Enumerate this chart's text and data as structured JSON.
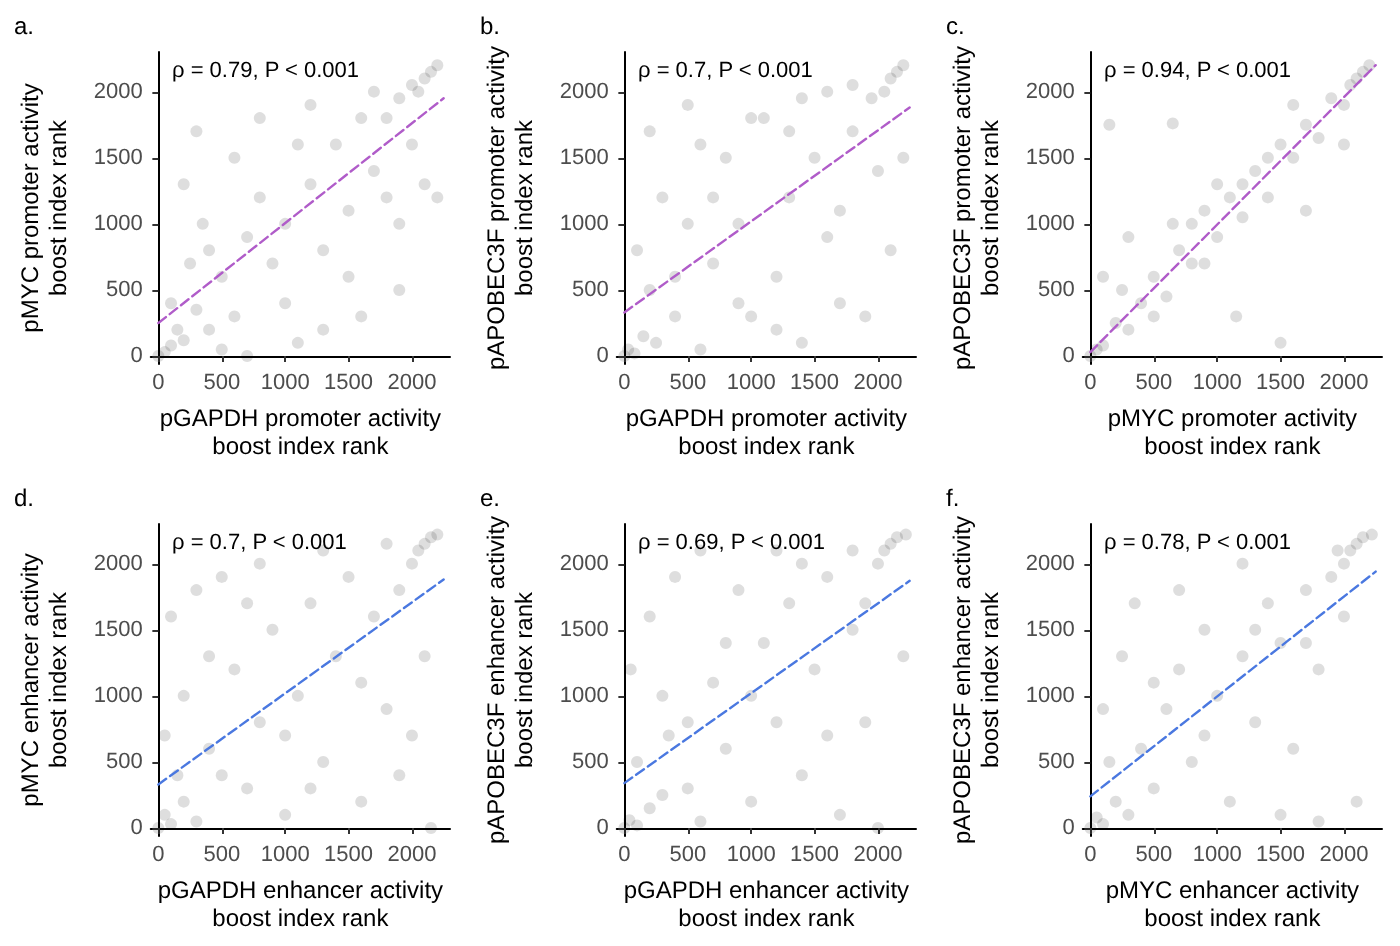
{
  "chart_data": [
    {
      "type": "scatter",
      "title": "a.",
      "xlabel": "pGAPDH promoter activity\nboost index rank",
      "ylabel": "pMYC promoter activity\nboost index rank",
      "annotations": [
        "ρ = 0.79, P < 0.001"
      ],
      "xlim": [
        -60,
        2300
      ],
      "ylim": [
        -60,
        2300
      ],
      "xticks": [
        0,
        500,
        1000,
        1500,
        2000
      ],
      "yticks": [
        0,
        500,
        1000,
        1500,
        2000
      ],
      "grid": false,
      "marker": "circle",
      "series": [
        {
          "color": "#000000",
          "x": [
            0,
            50,
            100,
            150,
            200,
            300,
            100,
            250,
            400,
            500,
            600,
            500,
            700,
            350,
            200,
            300,
            600,
            800,
            900,
            1000,
            1100,
            1000,
            1200,
            1300,
            1400,
            1500,
            1500,
            1600,
            1700,
            1800,
            1900,
            2000,
            2050,
            2100,
            2150,
            2200,
            2000,
            1900,
            1700,
            1200,
            800,
            1100,
            1300,
            1900,
            2100,
            2200,
            700,
            400,
            1600,
            1800
          ],
          "values": [
            0,
            30,
            80,
            200,
            120,
            350,
            400,
            700,
            200,
            50,
            300,
            600,
            900,
            1000,
            1300,
            1700,
            1500,
            1200,
            700,
            400,
            100,
            1000,
            1300,
            800,
            1600,
            1100,
            600,
            300,
            1400,
            1800,
            1000,
            1600,
            2000,
            2100,
            2150,
            2200,
            2050,
            1950,
            2000,
            1900,
            1800,
            1600,
            200,
            500,
            1300,
            1200,
            0,
            800,
            1800,
            1200
          ]
        },
        {
          "type": "line",
          "color": "#b05cc9",
          "line_style": "dashed",
          "marker": "none",
          "x": [
            0,
            2250
          ],
          "values": [
            250,
            1950
          ]
        }
      ]
    },
    {
      "type": "scatter",
      "title": "b.",
      "xlabel": "pGAPDH promoter activity\nboost index rank",
      "ylabel": "pAPOBEC3F promoter activity\nboost index rank",
      "annotations": [
        "ρ = 0.7, P < 0.001"
      ],
      "xlim": [
        -60,
        2300
      ],
      "ylim": [
        -60,
        2300
      ],
      "xticks": [
        0,
        500,
        1000,
        1500,
        2000
      ],
      "yticks": [
        0,
        500,
        1000,
        1500,
        2000
      ],
      "grid": false,
      "marker": "circle",
      "series": [
        {
          "color": "#000000",
          "x": [
            0,
            30,
            80,
            150,
            250,
            200,
            100,
            300,
            200,
            500,
            400,
            600,
            700,
            800,
            900,
            1000,
            1100,
            1200,
            1300,
            1400,
            1500,
            1600,
            1700,
            1800,
            1900,
            2000,
            2050,
            2100,
            2150,
            2200,
            1950,
            1800,
            1400,
            1000,
            600,
            1200,
            1600,
            700,
            400,
            2100,
            2200,
            900,
            1300,
            500,
            1700
          ],
          "values": [
            0,
            50,
            20,
            150,
            100,
            500,
            800,
            1200,
            1700,
            1900,
            300,
            50,
            700,
            1500,
            1000,
            300,
            1800,
            600,
            1200,
            100,
            1500,
            900,
            400,
            1700,
            300,
            1400,
            2000,
            2100,
            2150,
            2200,
            1950,
            2050,
            1950,
            1800,
            1600,
            200,
            2000,
            1200,
            600,
            800,
            1500,
            400,
            1700,
            1000,
            1100
          ]
        },
        {
          "type": "line",
          "color": "#b05cc9",
          "line_style": "dashed",
          "marker": "none",
          "x": [
            0,
            2250
          ],
          "values": [
            330,
            1880
          ]
        }
      ]
    },
    {
      "type": "scatter",
      "title": "c.",
      "xlabel": "pMYC promoter activity\nboost index rank",
      "ylabel": "pAPOBEC3F promoter activity\nboost index rank",
      "annotations": [
        "ρ = 0.94, P < 0.001"
      ],
      "xlim": [
        -60,
        2300
      ],
      "ylim": [
        -60,
        2300
      ],
      "xticks": [
        0,
        500,
        1000,
        1500,
        2000
      ],
      "yticks": [
        0,
        500,
        1000,
        1500,
        2000
      ],
      "grid": false,
      "marker": "circle",
      "series": [
        {
          "color": "#000000",
          "x": [
            0,
            50,
            100,
            200,
            300,
            250,
            400,
            500,
            600,
            700,
            650,
            800,
            900,
            1000,
            1100,
            1000,
            1200,
            1300,
            1400,
            1500,
            1600,
            1700,
            1800,
            1900,
            2000,
            2050,
            2100,
            2150,
            2200,
            150,
            650,
            1500,
            1150,
            300,
            1700,
            2000,
            1400,
            500,
            800,
            1200,
            100,
            900,
            1600
          ],
          "values": [
            0,
            50,
            80,
            250,
            200,
            500,
            400,
            600,
            450,
            800,
            1000,
            700,
            1100,
            900,
            1200,
            1300,
            1050,
            1400,
            1200,
            1600,
            1500,
            1750,
            1650,
            1950,
            1900,
            2050,
            2100,
            2150,
            2200,
            1750,
            1760,
            100,
            300,
            900,
            1100,
            1600,
            1500,
            300,
            1000,
            1300,
            600,
            700,
            1900
          ]
        },
        {
          "type": "line",
          "color": "#b05cc9",
          "line_style": "dashed",
          "marker": "none",
          "x": [
            0,
            2250
          ],
          "values": [
            30,
            2200
          ]
        }
      ]
    },
    {
      "type": "scatter",
      "title": "d.",
      "xlabel": "pGAPDH enhancer activity\nboost index rank",
      "ylabel": "pMYC enhancer activity\nboost index rank",
      "annotations": [
        "ρ = 0.7, P < 0.001"
      ],
      "xlim": [
        -60,
        2300
      ],
      "ylim": [
        -60,
        2300
      ],
      "xticks": [
        0,
        500,
        1000,
        1500,
        2000
      ],
      "yticks": [
        0,
        500,
        1000,
        1500,
        2000
      ],
      "grid": false,
      "marker": "circle",
      "series": [
        {
          "color": "#000000",
          "x": [
            0,
            50,
            100,
            200,
            300,
            150,
            400,
            50,
            200,
            100,
            300,
            500,
            600,
            700,
            800,
            900,
            1000,
            1100,
            1200,
            1300,
            1400,
            1500,
            1600,
            1700,
            1800,
            1900,
            2000,
            2050,
            2100,
            2150,
            2200,
            2150,
            2000,
            2100,
            1200,
            1600,
            400,
            800,
            1000,
            500,
            1300,
            1800,
            700,
            1900
          ],
          "values": [
            0,
            100,
            30,
            200,
            50,
            400,
            600,
            700,
            1000,
            1600,
            1800,
            1900,
            1200,
            300,
            800,
            1500,
            100,
            1000,
            1700,
            500,
            1300,
            1900,
            200,
            1600,
            900,
            1800,
            2000,
            2100,
            2150,
            2200,
            2220,
            0,
            700,
            1300,
            300,
            1100,
            1300,
            2000,
            700,
            400,
            2100,
            2150,
            1700,
            400
          ]
        },
        {
          "type": "line",
          "color": "#4a78e0",
          "line_style": "dashed",
          "marker": "none",
          "x": [
            0,
            2250
          ],
          "values": [
            330,
            1880
          ]
        }
      ]
    },
    {
      "type": "scatter",
      "title": "e.",
      "xlabel": "pGAPDH enhancer activity\nboost index rank",
      "ylabel": "pAPOBEC3F enhancer activity\nboost index rank",
      "annotations": [
        "ρ = 0.69, P < 0.001"
      ],
      "xlim": [
        -60,
        2300
      ],
      "ylim": [
        -60,
        2300
      ],
      "xticks": [
        0,
        500,
        1000,
        1500,
        2000
      ],
      "yticks": [
        0,
        500,
        1000,
        1500,
        2000
      ],
      "grid": false,
      "marker": "circle",
      "series": [
        {
          "color": "#000000",
          "x": [
            0,
            40,
            100,
            200,
            300,
            100,
            350,
            50,
            200,
            400,
            500,
            600,
            700,
            800,
            900,
            1000,
            1100,
            1200,
            1300,
            1400,
            1500,
            1600,
            1700,
            1800,
            1900,
            2000,
            2050,
            2100,
            2150,
            2220,
            2000,
            2200,
            1200,
            600,
            1000,
            500,
            1600,
            1900,
            800,
            300,
            1400,
            1800
          ],
          "values": [
            0,
            60,
            20,
            150,
            250,
            500,
            700,
            1200,
            1600,
            1900,
            300,
            50,
            1100,
            600,
            1800,
            200,
            1400,
            800,
            1700,
            400,
            1200,
            1900,
            100,
            1500,
            800,
            2000,
            2100,
            2150,
            2200,
            2220,
            0,
            1300,
            2100,
            2100,
            1000,
            800,
            700,
            1700,
            1400,
            1000,
            2000,
            2100
          ]
        },
        {
          "type": "line",
          "color": "#4a78e0",
          "line_style": "dashed",
          "marker": "none",
          "x": [
            0,
            2250
          ],
          "values": [
            340,
            1870
          ]
        }
      ]
    },
    {
      "type": "scatter",
      "title": "f.",
      "xlabel": "pMYC enhancer activity\nboost index rank",
      "ylabel": "pAPOBEC3F enhancer activity\nboost index rank",
      "annotations": [
        "ρ = 0.78, P < 0.001"
      ],
      "xlim": [
        -60,
        2300
      ],
      "ylim": [
        -60,
        2300
      ],
      "xticks": [
        0,
        500,
        1000,
        1500,
        2000
      ],
      "yticks": [
        0,
        500,
        1000,
        1500,
        2000
      ],
      "grid": false,
      "marker": "circle",
      "series": [
        {
          "color": "#000000",
          "x": [
            0,
            50,
            100,
            200,
            300,
            150,
            400,
            100,
            250,
            350,
            500,
            600,
            700,
            800,
            900,
            1000,
            1100,
            1200,
            1300,
            1400,
            1500,
            1600,
            1700,
            1800,
            1900,
            2000,
            2050,
            2100,
            2150,
            2220,
            1800,
            2100,
            2000,
            1200,
            700,
            1500,
            900,
            500,
            1300,
            1700,
            1950
          ],
          "values": [
            0,
            80,
            30,
            200,
            100,
            500,
            600,
            900,
            1300,
            1700,
            300,
            900,
            1200,
            500,
            1500,
            1000,
            200,
            1300,
            800,
            1700,
            1400,
            600,
            1800,
            1200,
            1900,
            2000,
            2100,
            2150,
            2200,
            2220,
            50,
            200,
            1600,
            2000,
            1800,
            100,
            700,
            1100,
            1500,
            1400,
            2100
          ]
        },
        {
          "type": "line",
          "color": "#4a78e0",
          "line_style": "dashed",
          "marker": "none",
          "x": [
            0,
            2250
          ],
          "values": [
            240,
            1940
          ]
        }
      ]
    }
  ]
}
